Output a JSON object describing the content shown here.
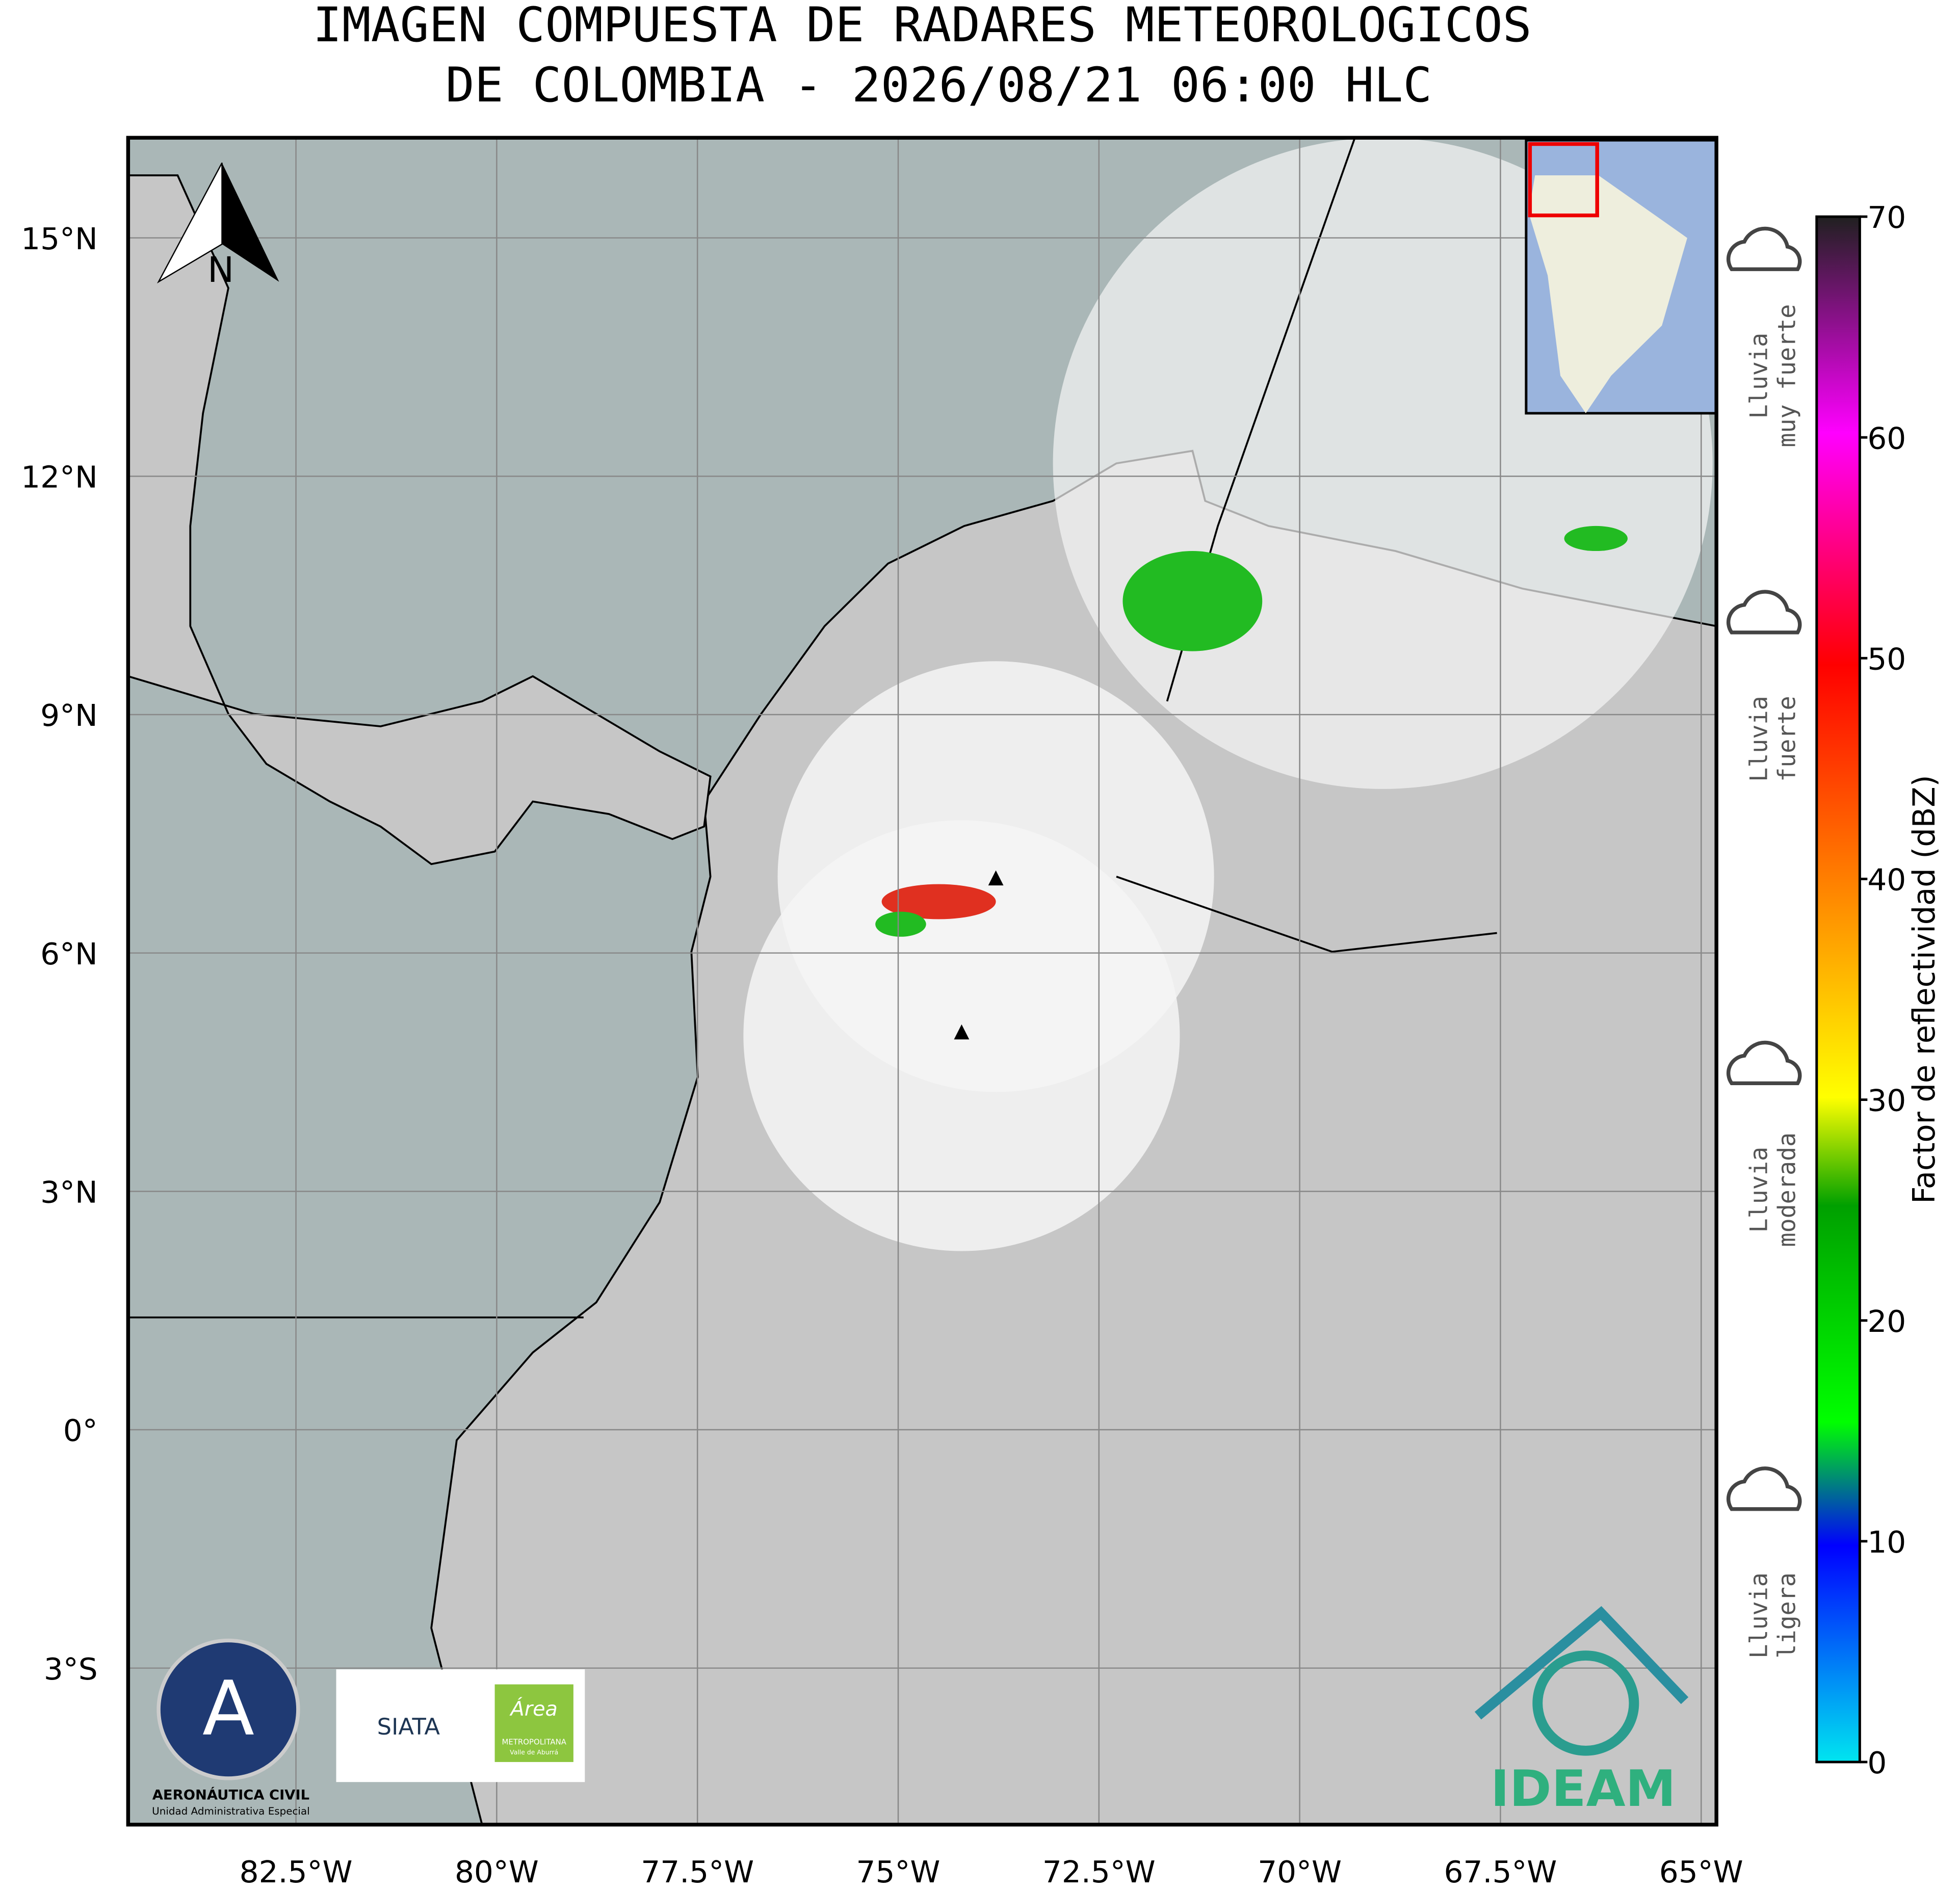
{
  "title": [
    "IMAGEN COMPUESTA DE RADARES METEOROLOGICOS",
    "DE COLOMBIA - 2026/08/21 06:00 HLC"
  ],
  "map": {
    "xlim": [
      -84.59,
      -64.81
    ],
    "ylim": [
      -4.97,
      16.26
    ],
    "xticks": [
      {
        "value": -82.5,
        "label": "82.5°W"
      },
      {
        "value": -80,
        "label": "80°W"
      },
      {
        "value": -77.5,
        "label": "77.5°W"
      },
      {
        "value": -75,
        "label": "75°W"
      },
      {
        "value": -72.5,
        "label": "72.5°W"
      },
      {
        "value": -70,
        "label": "70°W"
      },
      {
        "value": -67.5,
        "label": "67.5°W"
      },
      {
        "value": -65,
        "label": "65°W"
      }
    ],
    "yticks": [
      {
        "value": 15,
        "label": "15°N"
      },
      {
        "value": 12,
        "label": "12°N"
      },
      {
        "value": 9,
        "label": "9°N"
      },
      {
        "value": 6,
        "label": "6°N"
      },
      {
        "value": 3,
        "label": "3°N"
      },
      {
        "value": 0,
        "label": "0°"
      },
      {
        "value": -3,
        "label": "3°S"
      }
    ],
    "north": "N"
  },
  "colorbar": {
    "label": "Factor de reflectividad (dBZ)",
    "lim": [
      0,
      70
    ],
    "ticks": [
      0,
      10,
      20,
      30,
      40,
      50,
      60,
      70
    ]
  },
  "rain_labels": [
    [
      "Lluvia",
      "muy fuerte"
    ],
    [
      "Lluvia",
      "fuerte"
    ],
    [
      "Lluvia",
      "moderada"
    ],
    [
      "Lluvia",
      "ligera"
    ]
  ],
  "logos": {
    "aerocivil": "AERONÁUTICA CIVIL",
    "aerocivil_sub": "Unidad Administrativa Especial",
    "siata": "SIATA",
    "area": "Área",
    "area_sub": "METROPOLITANA",
    "area_sub2": "Valle de Aburrá",
    "ideam": "IDEAM"
  }
}
